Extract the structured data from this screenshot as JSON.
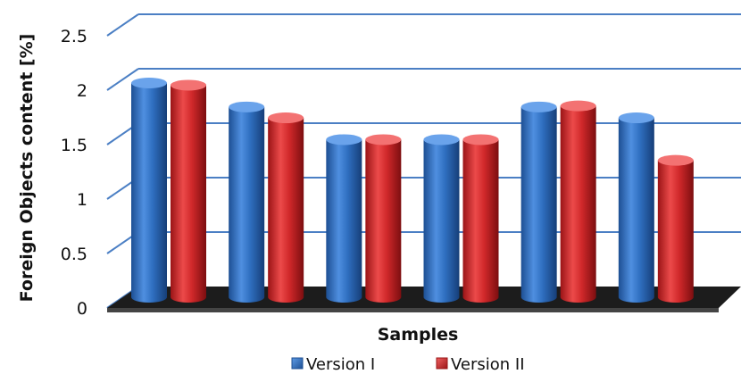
{
  "chart_data": {
    "type": "bar",
    "categories": [
      "",
      "",
      "",
      "",
      "",
      ""
    ],
    "series": [
      {
        "name": "Version I",
        "values": [
          2.0,
          1.78,
          1.48,
          1.48,
          1.78,
          1.68
        ],
        "color": "#2f6fc0"
      },
      {
        "name": "Version II",
        "values": [
          1.98,
          1.68,
          1.48,
          1.48,
          1.79,
          1.29
        ],
        "color": "#d0282a"
      }
    ],
    "title": "",
    "xlabel": "Samples",
    "ylabel": "Foreign Objects content [%]",
    "ylim": [
      0,
      2.5
    ],
    "yticks": [
      0,
      0.5,
      1,
      1.5,
      2,
      2.5
    ],
    "ytick_labels": [
      "0",
      "0.5",
      "1",
      "1.5",
      "2",
      "2.5"
    ],
    "grid": true,
    "legend_position": "bottom",
    "style": "3d-cylinder"
  }
}
